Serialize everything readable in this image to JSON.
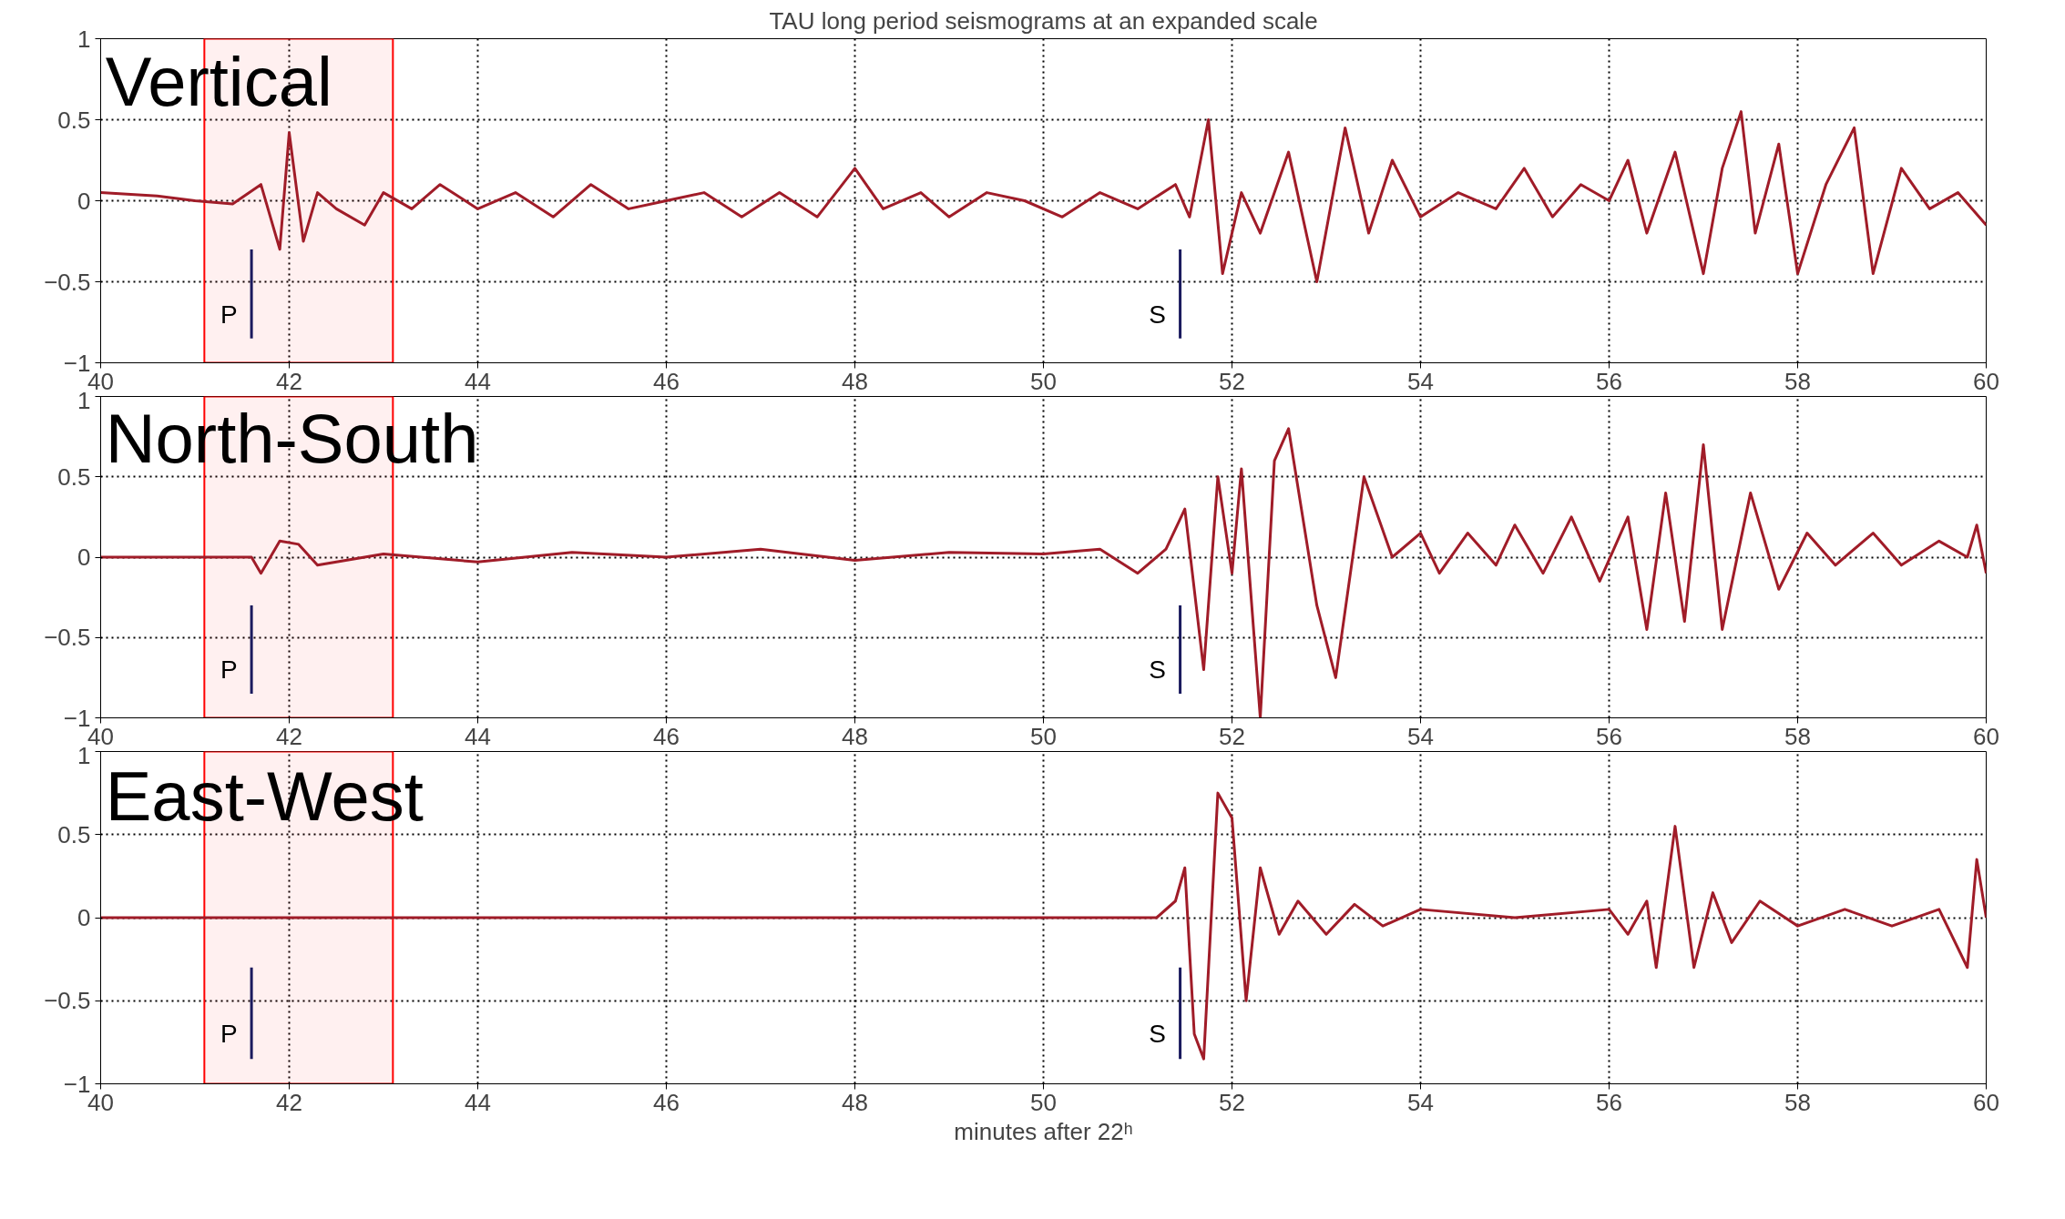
{
  "chart_data": [
    {
      "type": "line",
      "title": "TAU long period seismograms at an expanded scale",
      "annotations": [
        "Vertical"
      ],
      "ref_lines": [
        {
          "axis": "x",
          "value": 41.6,
          "label": "P",
          "color": "#1a1a5e"
        },
        {
          "axis": "x",
          "value": 51.45,
          "label": "S",
          "color": "#1a1a5e"
        }
      ],
      "series": [
        {
          "color": "#a01c28",
          "x": [
            40,
            40.6,
            41.0,
            41.4,
            41.7,
            41.9,
            42.0,
            42.15,
            42.3,
            42.5,
            42.8,
            43.0,
            43.3,
            43.6,
            44.0,
            44.4,
            44.8,
            45.2,
            45.6,
            46.0,
            46.4,
            46.8,
            47.2,
            47.6,
            48.0,
            48.3,
            48.7,
            49.0,
            49.4,
            49.8,
            50.2,
            50.6,
            51.0,
            51.4,
            51.55,
            51.75,
            51.9,
            52.1,
            52.3,
            52.6,
            52.9,
            53.2,
            53.45,
            53.7,
            54.0,
            54.4,
            54.8,
            55.1,
            55.4,
            55.7,
            56.0,
            56.2,
            56.4,
            56.7,
            57.0,
            57.2,
            57.4,
            57.55,
            57.8,
            58.0,
            58.3,
            58.6,
            58.8,
            59.1,
            59.4,
            59.7,
            60
          ],
          "values": [
            0.05,
            0.03,
            0.0,
            -0.02,
            0.1,
            -0.3,
            0.42,
            -0.25,
            0.05,
            -0.05,
            -0.15,
            0.05,
            -0.05,
            0.1,
            -0.05,
            0.05,
            -0.1,
            0.1,
            -0.05,
            0.0,
            0.05,
            -0.1,
            0.05,
            -0.1,
            0.2,
            -0.05,
            0.05,
            -0.1,
            0.05,
            0.0,
            -0.1,
            0.05,
            -0.05,
            0.1,
            -0.1,
            0.5,
            -0.45,
            0.05,
            -0.2,
            0.3,
            -0.5,
            0.45,
            -0.2,
            0.25,
            -0.1,
            0.05,
            -0.05,
            0.2,
            -0.1,
            0.1,
            0.0,
            0.25,
            -0.2,
            0.3,
            -0.45,
            0.2,
            0.55,
            -0.2,
            0.35,
            -0.45,
            0.1,
            0.45,
            -0.45,
            0.2,
            -0.05,
            0.05,
            -0.15
          ]
        }
      ],
      "xlim": [
        40,
        60
      ],
      "xticks": [
        40,
        42,
        44,
        46,
        48,
        50,
        52,
        54,
        56,
        58,
        60
      ],
      "ylim": [
        -1,
        1
      ],
      "yticks": [
        -1,
        -0.5,
        0,
        0.5,
        1
      ],
      "grid": true,
      "line_style": "solid",
      "bands": [
        {
          "axis": "x",
          "from": 41.1,
          "to": 43.1,
          "color": "#ff0000"
        }
      ]
    },
    {
      "type": "line",
      "annotations": [
        "North-South"
      ],
      "ref_lines": [
        {
          "axis": "x",
          "value": 41.6,
          "label": "P",
          "color": "#1a1a5e"
        },
        {
          "axis": "x",
          "value": 51.45,
          "label": "S",
          "color": "#1a1a5e"
        }
      ],
      "series": [
        {
          "color": "#a01c28",
          "x": [
            40,
            41.6,
            41.7,
            41.9,
            42.1,
            42.3,
            43,
            44,
            45,
            46,
            47,
            48,
            49,
            50,
            50.6,
            51.0,
            51.3,
            51.5,
            51.7,
            51.85,
            52.0,
            52.1,
            52.3,
            52.45,
            52.6,
            52.9,
            53.1,
            53.4,
            53.7,
            54.0,
            54.2,
            54.5,
            54.8,
            55.0,
            55.3,
            55.6,
            55.9,
            56.2,
            56.4,
            56.6,
            56.8,
            57.0,
            57.2,
            57.5,
            57.8,
            58.1,
            58.4,
            58.8,
            59.1,
            59.5,
            59.8,
            59.9,
            60
          ],
          "values": [
            0,
            0,
            -0.1,
            0.1,
            0.08,
            -0.05,
            0.02,
            -0.03,
            0.03,
            0.0,
            0.05,
            -0.02,
            0.03,
            0.02,
            0.05,
            -0.1,
            0.05,
            0.3,
            -0.7,
            0.5,
            -0.1,
            0.55,
            -1.0,
            0.6,
            0.8,
            -0.3,
            -0.75,
            0.5,
            0.0,
            0.15,
            -0.1,
            0.15,
            -0.05,
            0.2,
            -0.1,
            0.25,
            -0.15,
            0.25,
            -0.45,
            0.4,
            -0.4,
            0.7,
            -0.45,
            0.4,
            -0.2,
            0.15,
            -0.05,
            0.15,
            -0.05,
            0.1,
            0.0,
            0.2,
            -0.1
          ]
        }
      ],
      "xlim": [
        40,
        60
      ],
      "xticks": [
        40,
        42,
        44,
        46,
        48,
        50,
        52,
        54,
        56,
        58,
        60
      ],
      "ylim": [
        -1,
        1
      ],
      "yticks": [
        -1,
        -0.5,
        0,
        0.5,
        1
      ],
      "grid": true,
      "line_style": "solid",
      "bands": [
        {
          "axis": "x",
          "from": 41.1,
          "to": 43.1,
          "color": "#ff0000"
        }
      ]
    },
    {
      "type": "line",
      "xlabel": "minutes after 22ʰ",
      "annotations": [
        "East-West"
      ],
      "ref_lines": [
        {
          "axis": "x",
          "value": 41.6,
          "label": "P",
          "color": "#1a1a5e"
        },
        {
          "axis": "x",
          "value": 51.45,
          "label": "S",
          "color": "#1a1a5e"
        }
      ],
      "series": [
        {
          "color": "#a01c28",
          "x": [
            40,
            51.2,
            51.4,
            51.5,
            51.6,
            51.7,
            51.85,
            52.0,
            52.15,
            52.3,
            52.5,
            52.7,
            53.0,
            53.3,
            53.6,
            54,
            55,
            56,
            56.2,
            56.4,
            56.5,
            56.7,
            56.9,
            57.1,
            57.3,
            57.6,
            58,
            58.5,
            59,
            59.5,
            59.8,
            59.9,
            60
          ],
          "values": [
            0,
            0,
            0.1,
            0.3,
            -0.7,
            -0.85,
            0.75,
            0.6,
            -0.5,
            0.3,
            -0.1,
            0.1,
            -0.1,
            0.08,
            -0.05,
            0.05,
            0.0,
            0.05,
            -0.1,
            0.1,
            -0.3,
            0.55,
            -0.3,
            0.15,
            -0.15,
            0.1,
            -0.05,
            0.05,
            -0.05,
            0.05,
            -0.3,
            0.35,
            0.0
          ]
        }
      ],
      "xlim": [
        40,
        60
      ],
      "xticks": [
        40,
        42,
        44,
        46,
        48,
        50,
        52,
        54,
        56,
        58,
        60
      ],
      "ylim": [
        -1,
        1
      ],
      "yticks": [
        -1,
        -0.5,
        0,
        0.5,
        1
      ],
      "grid": true,
      "line_style": "solid",
      "bands": [
        {
          "axis": "x",
          "from": 41.1,
          "to": 43.1,
          "color": "#ff0000"
        }
      ]
    }
  ]
}
